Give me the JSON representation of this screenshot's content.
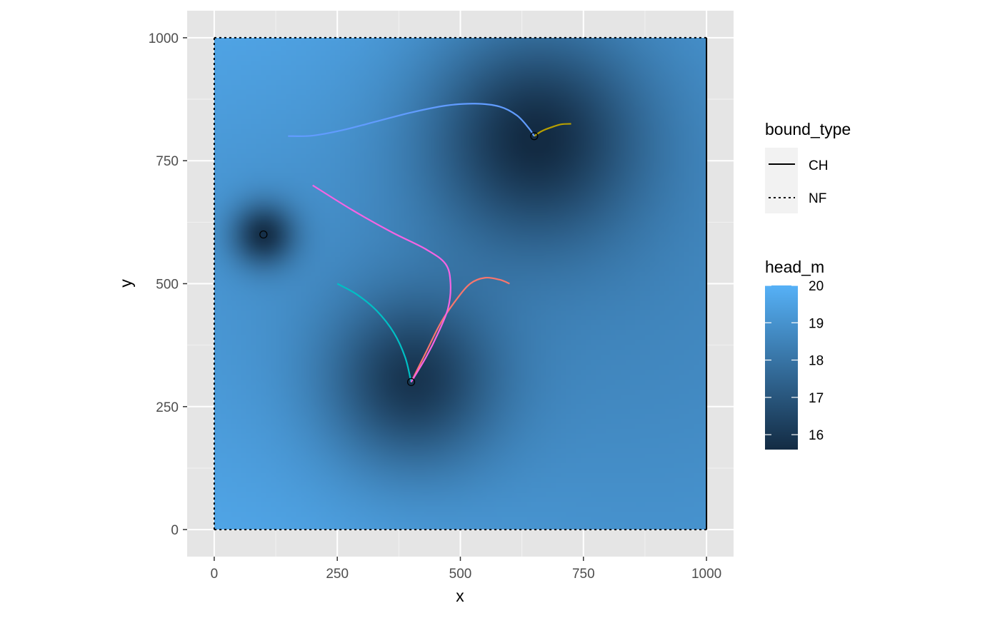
{
  "chart_data": {
    "type": "heatmap",
    "title": "",
    "xlabel": "x",
    "ylabel": "y",
    "xlim": [
      -55,
      1055
    ],
    "ylim": [
      -55,
      1055
    ],
    "x_ticks": [
      0,
      250,
      500,
      750,
      1000
    ],
    "y_ticks": [
      0,
      250,
      500,
      750,
      1000
    ],
    "x_tick_labels": [
      "0",
      "250",
      "500",
      "750",
      "1000"
    ],
    "y_tick_labels": [
      "0",
      "250",
      "500",
      "750",
      "1000"
    ],
    "grid": true,
    "panel_background": "#e5e5e5",
    "heatmap": {
      "variable": "head_m",
      "range": [
        15.6,
        20
      ],
      "low_color": "#132b43",
      "high_color": "#56b1f7",
      "extent": [
        0,
        1000,
        0,
        1000
      ],
      "wells": [
        {
          "x": 100,
          "y": 600,
          "depth": 3.2,
          "radius": 45
        },
        {
          "x": 400,
          "y": 300,
          "depth": 2.8,
          "radius": 120
        },
        {
          "x": 650,
          "y": 800,
          "depth": 3.0,
          "radius": 150
        }
      ]
    },
    "wells": [
      {
        "x": 100,
        "y": 600
      },
      {
        "x": 400,
        "y": 300
      },
      {
        "x": 650,
        "y": 800
      }
    ],
    "boundaries": [
      {
        "bound_type": "NF",
        "points": [
          [
            0,
            1000
          ],
          [
            1000,
            1000
          ]
        ]
      },
      {
        "bound_type": "CH",
        "points": [
          [
            1000,
            1000
          ],
          [
            1000,
            0
          ]
        ]
      },
      {
        "bound_type": "NF",
        "points": [
          [
            1000,
            0
          ],
          [
            0,
            0
          ]
        ]
      },
      {
        "bound_type": "NF",
        "points": [
          [
            0,
            0
          ],
          [
            0,
            1000
          ]
        ]
      }
    ],
    "particle_tracks": [
      {
        "color": "#f8766d",
        "points": [
          [
            600,
            500
          ],
          [
            580,
            508
          ],
          [
            550,
            512
          ],
          [
            520,
            500
          ],
          [
            490,
            465
          ],
          [
            460,
            420
          ],
          [
            430,
            360
          ],
          [
            400,
            300
          ]
        ]
      },
      {
        "color": "#b79f00",
        "points": [
          [
            725,
            825
          ],
          [
            705,
            824
          ],
          [
            685,
            818
          ],
          [
            665,
            810
          ],
          [
            650,
            800
          ]
        ]
      },
      {
        "color": "#00bfc4",
        "points": [
          [
            250,
            500
          ],
          [
            290,
            478
          ],
          [
            330,
            445
          ],
          [
            365,
            400
          ],
          [
            388,
            350
          ],
          [
            400,
            300
          ]
        ]
      },
      {
        "color": "#619cff",
        "points": [
          [
            150,
            800
          ],
          [
            200,
            801
          ],
          [
            260,
            812
          ],
          [
            330,
            830
          ],
          [
            400,
            848
          ],
          [
            470,
            862
          ],
          [
            530,
            866
          ],
          [
            580,
            860
          ],
          [
            615,
            842
          ],
          [
            640,
            815
          ],
          [
            650,
            800
          ]
        ]
      },
      {
        "color": "#f564e3",
        "points": [
          [
            200,
            700
          ],
          [
            280,
            650
          ],
          [
            360,
            605
          ],
          [
            430,
            570
          ],
          [
            470,
            540
          ],
          [
            480,
            500
          ],
          [
            475,
            450
          ],
          [
            455,
            400
          ],
          [
            430,
            350
          ],
          [
            400,
            300
          ]
        ]
      }
    ],
    "legends": {
      "bound_type": {
        "title": "bound_type",
        "entries": [
          {
            "label": "CH",
            "line": "solid"
          },
          {
            "label": "NF",
            "line": "dotted"
          }
        ]
      },
      "head_m": {
        "title": "head_m",
        "breaks": [
          20,
          19,
          18,
          17,
          16
        ],
        "labels": [
          "20",
          "19",
          "18",
          "17",
          "16"
        ]
      }
    }
  }
}
